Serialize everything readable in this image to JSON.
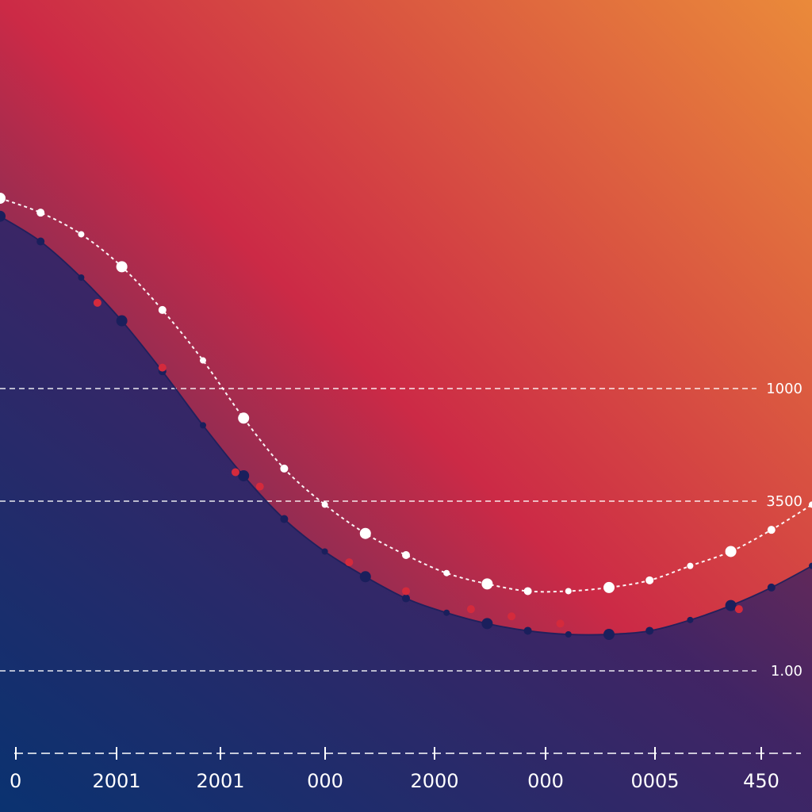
{
  "chart_data": {
    "type": "line",
    "title": "",
    "xlabel": "",
    "ylabel": "",
    "x_tick_labels": [
      "0",
      "2001",
      "2001",
      "000",
      "2000",
      "000",
      "0005",
      "450"
    ],
    "y_tick_labels": [
      "1000",
      "3500",
      "1.00"
    ],
    "grid": true,
    "legend": "none",
    "colors": {
      "background_top_right": "#ea8a3a",
      "background_middle": "#cc2a46",
      "background_bottom_left": "#0a3270",
      "area_fill": "#3a2466",
      "white_series": "#ffffff",
      "navy_series": "#1a1f5c",
      "red_series": "#d42a3c"
    },
    "series": [
      {
        "color": "#ffffff",
        "x": [
          0,
          0.05,
          0.1,
          0.15,
          0.2,
          0.25,
          0.3,
          0.35,
          0.4,
          0.45,
          0.5,
          0.55,
          0.6,
          0.65,
          0.7,
          0.75,
          0.8,
          0.85,
          0.9,
          0.95,
          1.0
        ],
        "values": [
          1230,
          1190,
          1130,
          1040,
          920,
          780,
          620,
          480,
          380,
          300,
          240,
          190,
          160,
          140,
          140,
          150,
          170,
          210,
          250,
          310,
          380
        ]
      },
      {
        "color": "#1a1f5c",
        "x": [
          0,
          0.05,
          0.1,
          0.15,
          0.2,
          0.25,
          0.3,
          0.35,
          0.4,
          0.45,
          0.5,
          0.55,
          0.6,
          0.65,
          0.7,
          0.75,
          0.8,
          0.85,
          0.9,
          0.95,
          1.0
        ],
        "values": [
          1180,
          1110,
          1010,
          890,
          750,
          600,
          460,
          340,
          250,
          180,
          120,
          80,
          50,
          30,
          20,
          20,
          30,
          60,
          100,
          150,
          210
        ]
      },
      {
        "color": "#d42a3c",
        "x": [
          0.12,
          0.2,
          0.29,
          0.32,
          0.43,
          0.5,
          0.58,
          0.63,
          0.69,
          0.91
        ],
        "values": [
          940,
          760,
          470,
          430,
          220,
          140,
          90,
          70,
          50,
          90
        ]
      }
    ]
  }
}
